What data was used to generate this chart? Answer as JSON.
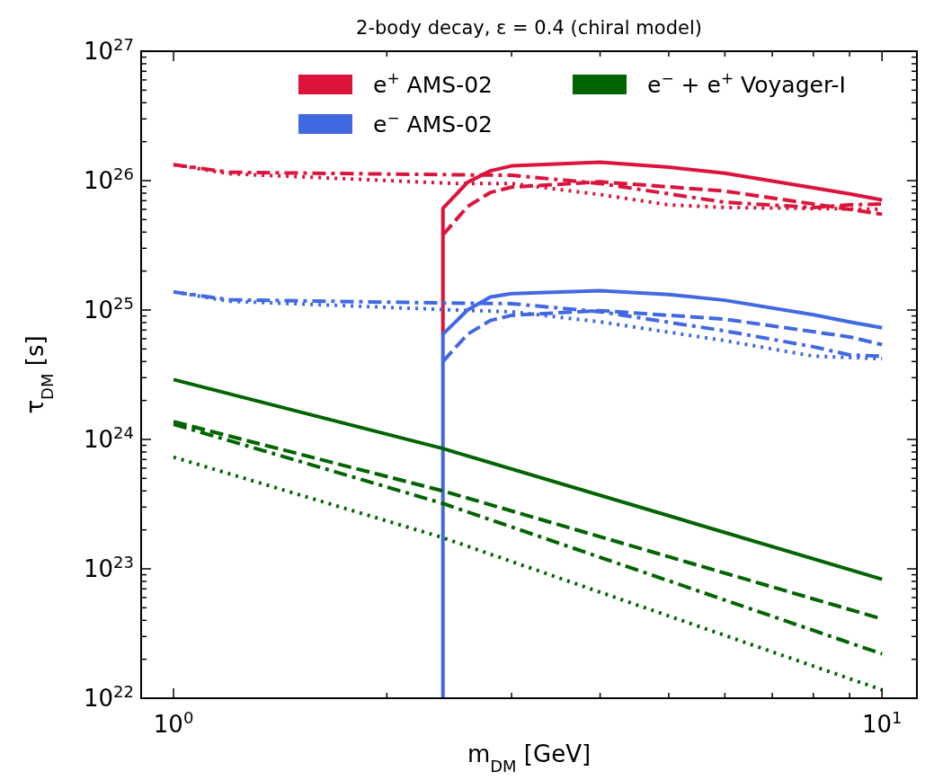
{
  "chart_data": {
    "type": "line",
    "title": "2-body decay, ε = 0.4 (chiral model)",
    "xlabel": "m$_{DM}$ [GeV]",
    "ylabel": "τ$_{DM}$ [s]",
    "log": "xy",
    "legend": "top",
    "grid": false,
    "xlim": [
      0.9,
      11.2
    ],
    "ylim": [
      1e+22,
      1e+27
    ],
    "xticks": [
      {
        "value": 1,
        "label": "10$^{0}$"
      },
      {
        "value": 2,
        "label": null
      },
      {
        "value": 3,
        "label": null
      },
      {
        "value": 4,
        "label": null
      },
      {
        "value": 5,
        "label": null
      },
      {
        "value": 6,
        "label": null
      },
      {
        "value": 7,
        "label": null
      },
      {
        "value": 8,
        "label": null
      },
      {
        "value": 9,
        "label": null
      },
      {
        "value": 10,
        "label": "10$^{1}$"
      }
    ],
    "yticks": [
      {
        "value": 1e+22,
        "label": "10$^{22}$"
      },
      {
        "value": 2e+22,
        "label": null
      },
      {
        "value": 3e+22,
        "label": null
      },
      {
        "value": 4e+22,
        "label": null
      },
      {
        "value": 5e+22,
        "label": null
      },
      {
        "value": 6e+22,
        "label": null
      },
      {
        "value": 7e+22,
        "label": null
      },
      {
        "value": 8e+22,
        "label": null
      },
      {
        "value": 9e+22,
        "label": null
      },
      {
        "value": 1e+23,
        "label": "10$^{23}$"
      },
      {
        "value": 2e+23,
        "label": null
      },
      {
        "value": 3e+23,
        "label": null
      },
      {
        "value": 4e+23,
        "label": null
      },
      {
        "value": 5e+23,
        "label": null
      },
      {
        "value": 6e+23,
        "label": null
      },
      {
        "value": 7e+23,
        "label": null
      },
      {
        "value": 8e+23,
        "label": null
      },
      {
        "value": 9e+23,
        "label": null
      },
      {
        "value": 1e+24,
        "label": "10$^{24}$"
      },
      {
        "value": 2e+24,
        "label": null
      },
      {
        "value": 3e+24,
        "label": null
      },
      {
        "value": 4e+24,
        "label": null
      },
      {
        "value": 5e+24,
        "label": null
      },
      {
        "value": 6e+24,
        "label": null
      },
      {
        "value": 7e+24,
        "label": null
      },
      {
        "value": 8e+24,
        "label": null
      },
      {
        "value": 9e+24,
        "label": null
      },
      {
        "value": 1e+25,
        "label": "10$^{25}$"
      },
      {
        "value": 2e+25,
        "label": null
      },
      {
        "value": 3e+25,
        "label": null
      },
      {
        "value": 4e+25,
        "label": null
      },
      {
        "value": 5e+25,
        "label": null
      },
      {
        "value": 6e+25,
        "label": null
      },
      {
        "value": 7e+25,
        "label": null
      },
      {
        "value": 8e+25,
        "label": null
      },
      {
        "value": 9e+25,
        "label": null
      },
      {
        "value": 1e+26,
        "label": "10$^{26}$"
      },
      {
        "value": 2e+26,
        "label": null
      },
      {
        "value": 3e+26,
        "label": null
      },
      {
        "value": 4e+26,
        "label": null
      },
      {
        "value": 5e+26,
        "label": null
      },
      {
        "value": 6e+26,
        "label": null
      },
      {
        "value": 7e+26,
        "label": null
      },
      {
        "value": 8e+26,
        "label": null
      },
      {
        "value": 9e+26,
        "label": null
      },
      {
        "value": 1e+27,
        "label": "10$^{27}$"
      }
    ],
    "series": [
      {
        "name": "e$^{+}$ AMS-02",
        "color": "#dc143c",
        "line_style": "solid",
        "x": [
          2.4,
          2.4,
          2.6,
          2.8,
          3,
          4,
          5,
          6,
          8,
          9,
          10
        ],
        "values": [
          6.5e+24,
          6.1e+25,
          9.7e+25,
          1.19e+26,
          1.3e+26,
          1.39e+26,
          1.27e+26,
          1.14e+26,
          8.8e+25,
          7.9e+25,
          7.1e+25
        ]
      },
      {
        "color": "#dc143c",
        "line_style": "dashed",
        "x": [
          2.4,
          2.6,
          2.8,
          3,
          4,
          6,
          9,
          10
        ],
        "values": [
          3.8e+25,
          6.3e+25,
          8.1e+25,
          8.9e+25,
          9.8e+25,
          8.3e+25,
          6e+25,
          5.5e+25
        ]
      },
      {
        "color": "#dc143c",
        "line_style": "dashdot",
        "x": [
          1,
          1.2,
          2.5,
          3,
          4,
          6,
          8,
          9,
          10
        ],
        "values": [
          1.33e+26,
          1.16e+26,
          1.11e+26,
          1.1e+26,
          9.5e+25,
          6.8e+25,
          6.2e+25,
          6.5e+25,
          6.6e+25
        ]
      },
      {
        "color": "#dc143c",
        "line_style": "dotted",
        "x": [
          1,
          1.2,
          2.5,
          3,
          4,
          5,
          6,
          10
        ],
        "values": [
          1.33e+26,
          1.13e+26,
          9.5e+25,
          9.5e+25,
          7.8e+25,
          6.5e+25,
          6.2e+25,
          6e+25
        ]
      },
      {
        "name": "e$^{−}$ AMS-02",
        "color": "#4169e1",
        "line_style": "solid",
        "x": [
          2.4,
          2.4,
          2.6,
          2.8,
          3,
          4,
          5,
          6,
          8,
          9,
          10
        ],
        "values": [
          1e+22,
          6.5e+24,
          1e+25,
          1.26e+25,
          1.34e+25,
          1.41e+25,
          1.32e+25,
          1.19e+25,
          9.2e+24,
          8.1e+24,
          7.3e+24
        ]
      },
      {
        "color": "#4169e1",
        "line_style": "dashed",
        "x": [
          2.4,
          2.6,
          2.8,
          3,
          4,
          6,
          9,
          10
        ],
        "values": [
          4e+24,
          6.5e+24,
          8.3e+24,
          9.1e+24,
          9.9e+24,
          8.5e+24,
          6.2e+24,
          5.4e+24
        ]
      },
      {
        "color": "#4169e1",
        "line_style": "dashdot",
        "x": [
          1,
          1.2,
          2.5,
          3,
          4,
          6,
          8,
          9,
          10
        ],
        "values": [
          1.38e+25,
          1.2e+25,
          1.13e+25,
          1.12e+25,
          9.7e+24,
          6.9e+24,
          5.2e+24,
          4.5e+24,
          4.4e+24
        ]
      },
      {
        "color": "#4169e1",
        "line_style": "dotted",
        "x": [
          1,
          1.2,
          2.5,
          3,
          4,
          6,
          8,
          10
        ],
        "values": [
          1.38e+25,
          1.17e+25,
          1e+25,
          9.7e+24,
          8.1e+24,
          5.8e+24,
          4.4e+24,
          4.2e+24
        ]
      },
      {
        "name": "e$^{−}$ + e$^{+}$ Voyager-I",
        "color": "#006400",
        "line_style": "solid",
        "x": [
          1,
          2.4,
          10
        ],
        "values": [
          2.9e+24,
          8.5e+23,
          8.3e+22
        ]
      },
      {
        "color": "#006400",
        "line_style": "dashed",
        "x": [
          1,
          2.4,
          10
        ],
        "values": [
          1.37e+24,
          4e+23,
          4.1e+22
        ]
      },
      {
        "color": "#006400",
        "line_style": "dashdot",
        "x": [
          1,
          2.4,
          10
        ],
        "values": [
          1.31e+24,
          3.2e+23,
          2.2e+22
        ]
      },
      {
        "color": "#006400",
        "line_style": "dotted",
        "x": [
          1,
          2.4,
          10
        ],
        "values": [
          7.3e+23,
          1.74e+23,
          1.16e+22
        ]
      }
    ]
  }
}
